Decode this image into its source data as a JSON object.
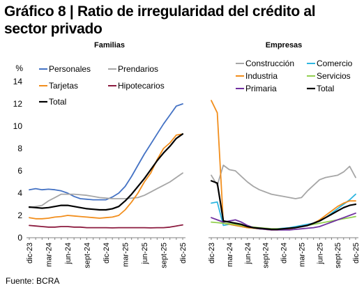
{
  "title": "Gráfico 8 | Ratio de irregularidad del crédito al sector privado",
  "source": "Fuente: BCRA",
  "chart_data": [
    {
      "type": "line",
      "title": "Familias",
      "ylabel": "%",
      "ylim": [
        0,
        14
      ],
      "yticks": [
        0,
        2,
        4,
        6,
        8,
        10,
        12,
        14
      ],
      "grid": false,
      "legend": "top-left",
      "x": [
        "dic-23",
        "ene-24",
        "feb-24",
        "mar-24",
        "abr-24",
        "may-24",
        "jun-24",
        "jul-24",
        "ago-24",
        "sept-24",
        "oct-24",
        "nov-24",
        "dic-24",
        "ene-25",
        "feb-25",
        "mar-25",
        "abr-25",
        "may-25",
        "jun-25",
        "jul-25",
        "ago-25",
        "sept-25",
        "oct-25",
        "nov-25",
        "dic-25"
      ],
      "xticks": [
        "dic-23",
        "mar-24",
        "jun-24",
        "sept-24",
        "dic-24",
        "mar-25",
        "jun-25",
        "sept-25",
        "dic-25"
      ],
      "series": [
        {
          "name": "Personales",
          "color": "#4472c4",
          "values": [
            4.3,
            4.4,
            4.3,
            4.35,
            4.3,
            4.2,
            4.0,
            3.7,
            3.5,
            3.45,
            3.4,
            3.4,
            3.4,
            3.65,
            4.0,
            4.6,
            5.5,
            6.5,
            7.5,
            8.4,
            9.3,
            10.2,
            11.0,
            11.8,
            12.0
          ]
        },
        {
          "name": "Prendarios",
          "color": "#a6a6a6",
          "values": [
            2.7,
            2.8,
            2.9,
            3.3,
            3.6,
            3.9,
            3.9,
            3.9,
            3.85,
            3.8,
            3.7,
            3.6,
            3.55,
            3.5,
            3.5,
            3.5,
            3.55,
            3.6,
            3.8,
            4.1,
            4.4,
            4.7,
            5.0,
            5.4,
            5.8
          ]
        },
        {
          "name": "Tarjetas",
          "color": "#f28e1c",
          "values": [
            1.8,
            1.7,
            1.7,
            1.75,
            1.85,
            1.9,
            2.0,
            1.95,
            1.9,
            1.85,
            1.8,
            1.75,
            1.8,
            1.85,
            2.0,
            2.5,
            3.2,
            4.0,
            5.0,
            5.8,
            7.0,
            8.0,
            8.5,
            9.2,
            9.3
          ]
        },
        {
          "name": "Hipotecarios",
          "color": "#8b1a3e",
          "values": [
            1.1,
            1.05,
            1.0,
            0.95,
            0.95,
            1.0,
            1.0,
            0.95,
            0.95,
            0.9,
            0.9,
            0.9,
            0.9,
            0.88,
            0.9,
            0.9,
            0.9,
            0.9,
            0.9,
            0.88,
            0.9,
            0.9,
            0.95,
            1.05,
            1.15
          ]
        },
        {
          "name": "Total",
          "color": "#000000",
          "values": [
            2.75,
            2.7,
            2.65,
            2.7,
            2.8,
            2.9,
            2.9,
            2.8,
            2.7,
            2.6,
            2.55,
            2.5,
            2.5,
            2.6,
            2.8,
            3.3,
            3.9,
            4.6,
            5.3,
            6.1,
            6.9,
            7.6,
            8.2,
            8.9,
            9.3
          ]
        }
      ]
    },
    {
      "type": "line",
      "title": "Empresas",
      "ylim": [
        0,
        14
      ],
      "grid": false,
      "legend": "top",
      "x": [
        "dic-23",
        "ene-24",
        "feb-24",
        "mar-24",
        "abr-24",
        "may-24",
        "jun-24",
        "jul-24",
        "ago-24",
        "sept-24",
        "oct-24",
        "nov-24",
        "dic-24",
        "ene-25",
        "feb-25",
        "mar-25",
        "abr-25",
        "may-25",
        "jun-25",
        "jul-25",
        "ago-25",
        "sept-25",
        "oct-25",
        "nov-25",
        "dic-25"
      ],
      "xticks": [
        "dic-23",
        "mar-24",
        "jun-24",
        "sept-24",
        "dic-24",
        "mar-25",
        "jun-25",
        "sept-25",
        "dic-25"
      ],
      "series": [
        {
          "name": "Construcción",
          "color": "#a6a6a6",
          "values": [
            5.6,
            4.7,
            6.5,
            6.1,
            6.0,
            5.5,
            5.0,
            4.6,
            4.3,
            4.1,
            3.9,
            3.8,
            3.7,
            3.6,
            3.5,
            3.6,
            4.2,
            4.7,
            5.2,
            5.4,
            5.5,
            5.6,
            5.9,
            6.4,
            5.4
          ]
        },
        {
          "name": "Comercio",
          "color": "#2eb6e0",
          "values": [
            3.1,
            3.2,
            1.1,
            1.2,
            1.1,
            1.0,
            0.9,
            0.85,
            0.8,
            0.75,
            0.75,
            0.8,
            0.85,
            0.9,
            1.0,
            1.1,
            1.2,
            1.3,
            1.5,
            1.8,
            2.2,
            2.6,
            3.0,
            3.4,
            3.9
          ]
        },
        {
          "name": "Industria",
          "color": "#f28e1c",
          "values": [
            12.3,
            11.2,
            1.3,
            1.2,
            1.1,
            1.0,
            0.9,
            0.85,
            0.8,
            0.75,
            0.7,
            0.7,
            0.75,
            0.8,
            0.9,
            1.0,
            1.1,
            1.3,
            1.6,
            2.0,
            2.4,
            2.8,
            3.1,
            3.3,
            3.3
          ]
        },
        {
          "name": "Servicios",
          "color": "#92d050",
          "values": [
            1.4,
            1.35,
            1.3,
            1.25,
            1.2,
            1.1,
            1.0,
            0.95,
            0.9,
            0.85,
            0.8,
            0.8,
            0.8,
            0.85,
            0.9,
            1.0,
            1.1,
            1.2,
            1.3,
            1.4,
            1.5,
            1.6,
            1.7,
            1.8,
            1.9
          ]
        },
        {
          "name": "Primaria",
          "color": "#7030a0",
          "values": [
            1.8,
            1.6,
            1.4,
            1.5,
            1.6,
            1.4,
            1.1,
            0.9,
            0.8,
            0.75,
            0.7,
            0.7,
            0.7,
            0.7,
            0.75,
            0.8,
            0.85,
            0.9,
            1.0,
            1.2,
            1.4,
            1.6,
            1.8,
            2.0,
            2.2
          ]
        },
        {
          "name": "Total",
          "color": "#000000",
          "values": [
            5.1,
            4.9,
            1.5,
            1.4,
            1.3,
            1.2,
            1.0,
            0.9,
            0.85,
            0.8,
            0.75,
            0.75,
            0.8,
            0.85,
            0.9,
            1.0,
            1.1,
            1.3,
            1.5,
            1.8,
            2.1,
            2.4,
            2.7,
            2.9,
            3.0
          ]
        }
      ]
    }
  ]
}
